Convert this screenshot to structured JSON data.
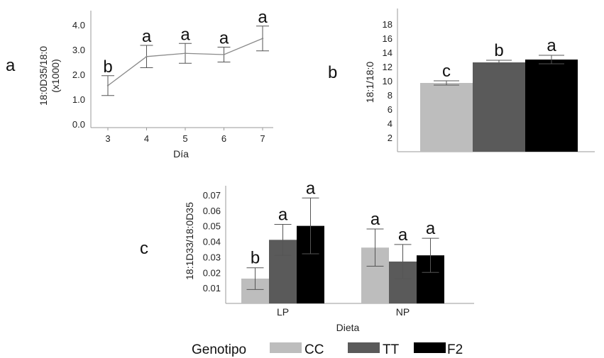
{
  "panels": {
    "a": "a",
    "b": "b",
    "c": "c"
  },
  "colors": {
    "CC": "#bdbdbd",
    "TT": "#5a5a5a",
    "F2": "#000000",
    "line": "#8a8a8a",
    "axis": "#9a9a9a"
  },
  "legend": {
    "title": "Genotipo",
    "items": [
      "CC",
      "TT",
      "F2"
    ]
  },
  "chart_data": [
    {
      "id": "a",
      "type": "line",
      "xlabel": "Día",
      "ylabel_lines": [
        "18:0D35/18:0",
        "(x1000)"
      ],
      "x": [
        3,
        4,
        5,
        6,
        7
      ],
      "y": [
        1.55,
        2.72,
        2.85,
        2.8,
        3.45
      ],
      "err": [
        0.4,
        0.45,
        0.4,
        0.3,
        0.5
      ],
      "sig": [
        "b",
        "a",
        "a",
        "a",
        "a"
      ],
      "ylim": [
        0.0,
        4.0
      ],
      "yticks": [
        "0.0",
        "1.0",
        "2.0",
        "3.0",
        "4.0"
      ],
      "yticks_values": [
        0.0,
        1.0,
        2.0,
        3.0,
        4.0
      ]
    },
    {
      "id": "b",
      "type": "bar",
      "ylabel": "18:1/18:0",
      "categories": [
        "CC",
        "TT",
        "F2"
      ],
      "values": [
        9.7,
        12.6,
        13.0
      ],
      "err": [
        0.3,
        0.3,
        0.6
      ],
      "sig": [
        "c",
        "b",
        "a"
      ],
      "ylim": [
        0,
        20
      ],
      "yticks": [
        "2",
        "4",
        "6",
        "8",
        "10",
        "12",
        "14",
        "16",
        "18"
      ],
      "yticks_values": [
        2,
        4,
        6,
        8,
        10,
        12,
        14,
        16,
        18
      ]
    },
    {
      "id": "c",
      "type": "bar",
      "xlabel": "Dieta",
      "ylabel": "18:1D33/18:0D35",
      "categories": [
        "LP",
        "NP"
      ],
      "series": [
        {
          "name": "CC",
          "values": [
            0.016,
            0.036
          ],
          "err": [
            0.007,
            0.012
          ],
          "sig": [
            "b",
            "a"
          ]
        },
        {
          "name": "TT",
          "values": [
            0.041,
            0.027
          ],
          "err": [
            0.01,
            0.011
          ],
          "sig": [
            "a",
            "a"
          ]
        },
        {
          "name": "F2",
          "values": [
            0.05,
            0.031
          ],
          "err": [
            0.018,
            0.011
          ],
          "sig": [
            "a",
            "a"
          ]
        }
      ],
      "ylim": [
        0,
        0.08
      ],
      "yticks": [
        "0.01",
        "0.02",
        "0.03",
        "0.04",
        "0.05",
        "0.06",
        "0.07"
      ],
      "yticks_values": [
        0.01,
        0.02,
        0.03,
        0.04,
        0.05,
        0.06,
        0.07
      ]
    }
  ]
}
